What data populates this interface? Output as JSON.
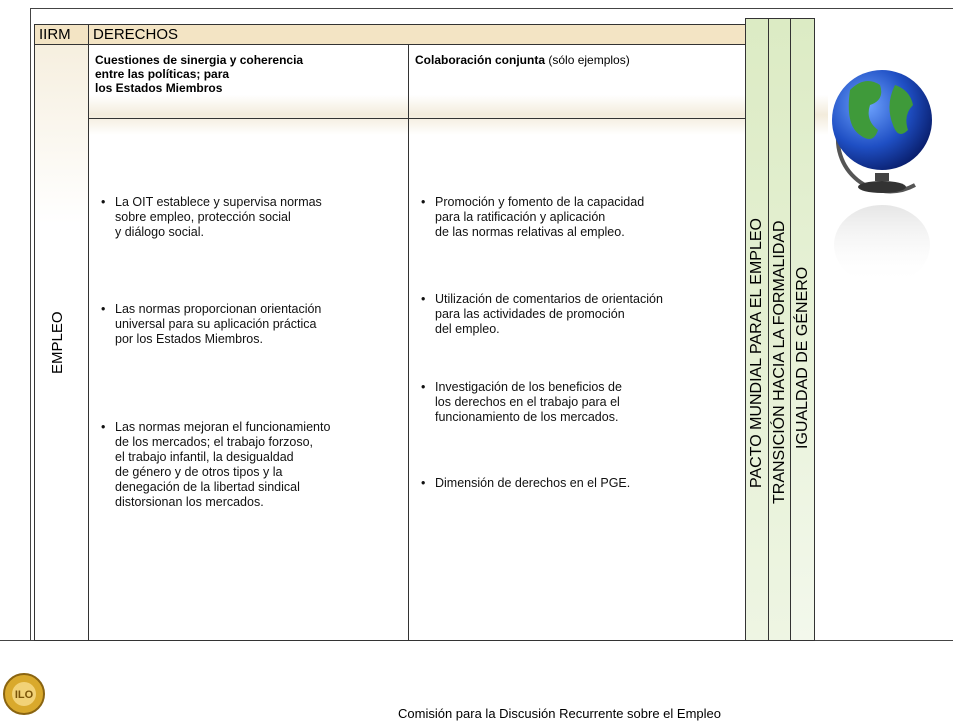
{
  "header": {
    "code": "IIRM",
    "title": "DERECHOS"
  },
  "row_label": "EMPLEO",
  "columns": [
    {
      "heading": [
        "Cuestiones de sinergia y coherencia",
        "entre las políticas; para",
        "los Estados Miembros"
      ],
      "bullets": [
        [
          "La OIT establece y supervisa normas",
          "sobre empleo, protección social",
          "y diálogo social."
        ],
        [
          "Las normas proporcionan orientación",
          "universal para su aplicación práctica",
          "por los Estados Miembros."
        ],
        [
          "Las normas mejoran el funcionamiento",
          "de los mercados; el trabajo forzoso,",
          "el trabajo infantil, la desigualdad",
          "de género y de otros tipos y la",
          "denegación de la libertad sindical",
          "distorsionan los mercados."
        ]
      ]
    },
    {
      "heading_bold": "Colaboración conjunta",
      "heading_note": "(sólo ejemplos)",
      "bullets": [
        [
          "Promoción y fomento de la capacidad",
          "para la ratificación y aplicación",
          "de las normas relativas al empleo."
        ],
        [
          "Utilización de comentarios de orientación",
          "para las actividades de promoción",
          "del empleo."
        ],
        [
          "Investigación de los beneficios de",
          "los derechos en el trabajo para el",
          "funcionamiento de los mercados."
        ],
        [
          "Dimensión de derechos en el PGE."
        ]
      ]
    }
  ],
  "side_labels": [
    "PACTO MUNDIAL PARA EL EMPLEO",
    "TRANSICIÓN HACIA LA FORMALIDAD",
    "IGUALDAD DE GÉNERO"
  ],
  "footer": "Comisión para la Discusión Recurrente sobre el Empleo"
}
